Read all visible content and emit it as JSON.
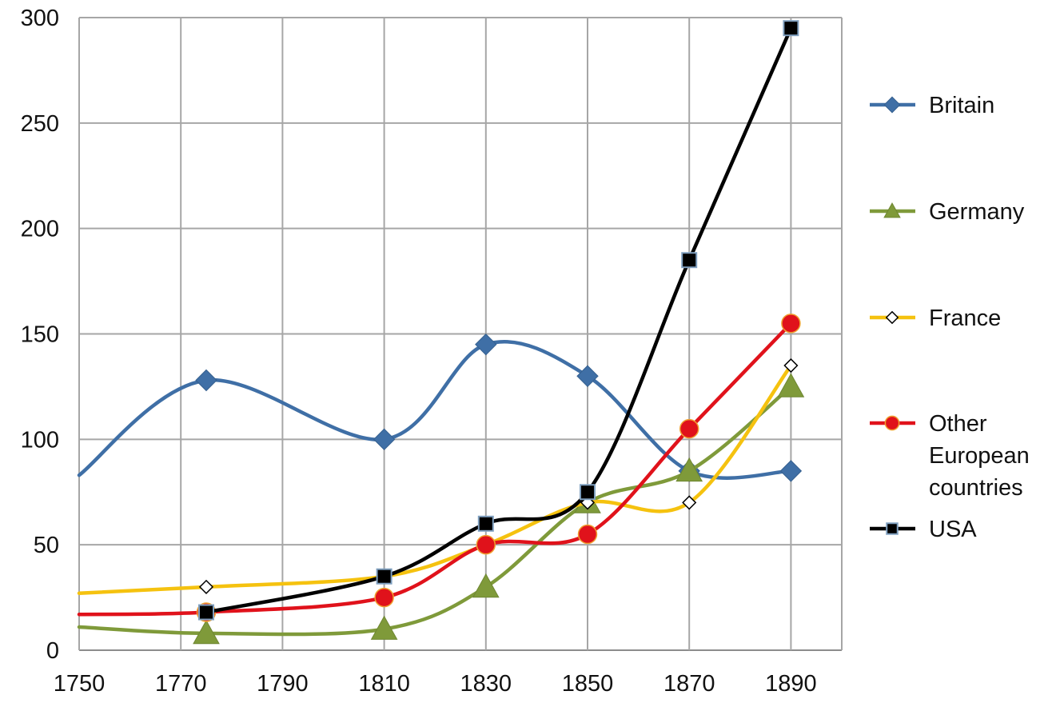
{
  "chart_data": {
    "type": "line",
    "title": "",
    "xlabel": "",
    "ylabel": "",
    "xlim": [
      1750,
      1900
    ],
    "ylim": [
      0,
      300
    ],
    "x_ticks": [
      1750,
      1770,
      1790,
      1810,
      1830,
      1850,
      1870,
      1890
    ],
    "y_ticks": [
      0,
      50,
      100,
      150,
      200,
      250,
      300
    ],
    "grid": true,
    "legend_position": "right",
    "series": [
      {
        "name": "Britain",
        "color": "#3f6fa6",
        "marker": "diamond",
        "points": [
          [
            1750,
            83
          ],
          [
            1775,
            128
          ],
          [
            1810,
            100
          ],
          [
            1830,
            145
          ],
          [
            1850,
            130
          ],
          [
            1870,
            85
          ],
          [
            1890,
            85
          ]
        ]
      },
      {
        "name": "Germany",
        "color": "#7f9a3a",
        "marker": "triangle",
        "points": [
          [
            1750,
            11
          ],
          [
            1775,
            8
          ],
          [
            1810,
            10
          ],
          [
            1830,
            30
          ],
          [
            1850,
            70
          ],
          [
            1870,
            85
          ],
          [
            1890,
            125
          ]
        ]
      },
      {
        "name": "France",
        "color": "#f5c20f",
        "marker": "open-diamond",
        "points": [
          [
            1750,
            27
          ],
          [
            1775,
            30
          ],
          [
            1810,
            35
          ],
          [
            1830,
            50
          ],
          [
            1850,
            70
          ],
          [
            1870,
            70
          ],
          [
            1890,
            135
          ]
        ]
      },
      {
        "name": "Other European countries",
        "legend_lines": [
          "Other",
          "European",
          "countries"
        ],
        "color": "#e0121b",
        "marker": "circle",
        "points": [
          [
            1750,
            17
          ],
          [
            1775,
            18
          ],
          [
            1810,
            25
          ],
          [
            1830,
            50
          ],
          [
            1850,
            55
          ],
          [
            1870,
            105
          ],
          [
            1890,
            155
          ]
        ]
      },
      {
        "name": "USA",
        "color": "#000000",
        "marker": "square",
        "points": [
          [
            1775,
            18
          ],
          [
            1810,
            35
          ],
          [
            1830,
            60
          ],
          [
            1850,
            75
          ],
          [
            1870,
            185
          ],
          [
            1890,
            295
          ]
        ]
      }
    ]
  }
}
